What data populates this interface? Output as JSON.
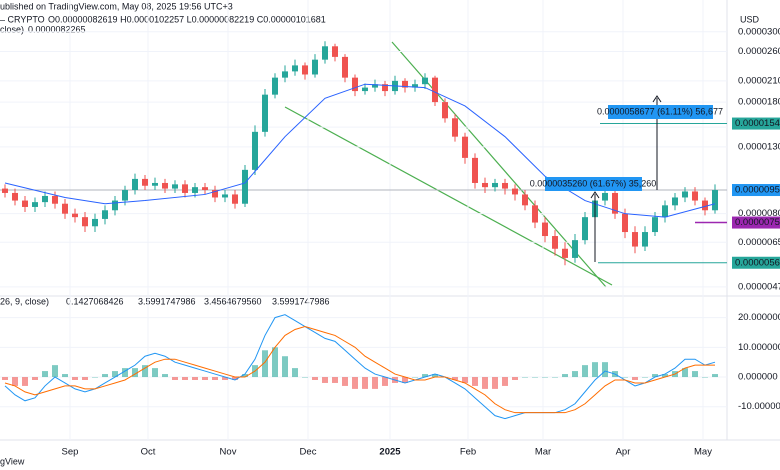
{
  "header": {
    "published": "ublished on TradingView.com, May 08, 2025 19:56 UTC+3",
    "symbol": "– CRYPTO",
    "ohlc": "O0.00000082619 H0.0000102257 L0.00000082219 C0.00000101681",
    "ma_label": "close)",
    "ma_value": "0.0000082265",
    "currency": "USD",
    "footer": "gView"
  },
  "chart_data": [
    {
      "type": "candlestick",
      "log": true,
      "up_color": "#26a69a",
      "down_color": "#ef5350",
      "xlim": [
        -0.5,
        72
      ],
      "ylim": [
        4.43e-06,
        3.78e-05
      ],
      "open": [
        9.6e-06,
        9.3e-06,
        8.8e-06,
        8.4e-06,
        8.7e-06,
        9.1e-06,
        8.6e-06,
        8e-06,
        7.8e-06,
        7.3e-06,
        7.7e-06,
        8.2e-06,
        8.8e-06,
        9.5e-06,
        1.03e-05,
        9.8e-06,
        1e-05,
        9.6e-06,
        9.9e-06,
        9.3e-06,
        9.7e-06,
        9.5e-06,
        9e-06,
        9.2e-06,
        8.6e-06,
        1.1e-05,
        1.45e-05,
        1.9e-05,
        2.15e-05,
        2.25e-05,
        2.35e-05,
        2.2e-05,
        2.45e-05,
        2.7e-05,
        2.5e-05,
        2.15e-05,
        1.95e-05,
        2e-05,
        2.05e-05,
        1.95e-05,
        2.1e-05,
        2e-05,
        2.05e-05,
        2.15e-05,
        1.8e-05,
        1.6e-05,
        1.4e-05,
        1.2e-05,
        1e-05,
        9.7e-06,
        1e-05,
        9.6e-06,
        9.2e-06,
        8.5e-06,
        7.5e-06,
        6.8e-06,
        6.2e-06,
        5.8e-06,
        6.6e-06,
        7.8e-06,
        8.8e-06,
        9.3e-06,
        8e-06,
        7e-06,
        6.3e-06,
        7e-06,
        7.8e-06,
        8.5e-06,
        9e-06,
        9.4e-06,
        8.8e-06,
        8.2e-06
      ],
      "high": [
        9.9e-06,
        9.6e-06,
        9.1e-06,
        9e-06,
        9.4e-06,
        9.4e-06,
        8.9e-06,
        8.3e-06,
        8.1e-06,
        8e-06,
        8.5e-06,
        9.1e-06,
        9.8e-06,
        1.07e-05,
        1.06e-05,
        1.04e-05,
        1.03e-05,
        1.02e-05,
        1.02e-05,
        1e-05,
        1e-05,
        9.8e-06,
        9.5e-06,
        9.5e-06,
        1.14e-05,
        1.52e-05,
        1.98e-05,
        2.22e-05,
        2.35e-05,
        2.45e-05,
        2.4e-05,
        2.55e-05,
        2.8e-05,
        2.75e-05,
        2.55e-05,
        2.2e-05,
        2.06e-05,
        2.12e-05,
        2.1e-05,
        2.18e-05,
        2.14e-05,
        2.12e-05,
        2.22e-05,
        2.18e-05,
        1.85e-05,
        1.65e-05,
        1.44e-05,
        1.24e-05,
        1.04e-05,
        1.03e-05,
        1.03e-05,
        9.9e-06,
        9.5e-06,
        8.8e-06,
        7.8e-06,
        7.1e-06,
        6.5e-06,
        6.9e-06,
        8.1e-06,
        9.1e-06,
        9.6e-06,
        9.7e-06,
        8.3e-06,
        7.3e-06,
        7.3e-06,
        8.1e-06,
        8.8e-06,
        9.3e-06,
        9.7e-06,
        9.7e-06,
        9e-06,
        9.9e-06
      ],
      "low": [
        9e-06,
        8.5e-06,
        8.1e-06,
        8.1e-06,
        8.4e-06,
        8.3e-06,
        7.7e-06,
        7.5e-06,
        7e-06,
        7e-06,
        7.4e-06,
        7.9e-06,
        8.5e-06,
        9.2e-06,
        9.5e-06,
        9.5e-06,
        9.3e-06,
        9.3e-06,
        9e-06,
        9e-06,
        9.2e-06,
        8.7e-06,
        8.7e-06,
        8.3e-06,
        8.4e-06,
        1.06e-05,
        1.4e-05,
        1.85e-05,
        2.08e-05,
        2.18e-05,
        2.12e-05,
        2.15e-05,
        2.38e-05,
        2.42e-05,
        2.08e-05,
        1.88e-05,
        1.9e-05,
        1.94e-05,
        1.88e-05,
        1.9e-05,
        1.93e-05,
        1.94e-05,
        1.98e-05,
        1.75e-05,
        1.55e-05,
        1.35e-05,
        1.15e-05,
        9.6e-06,
        9.3e-06,
        9.4e-06,
        9.2e-06,
        8.8e-06,
        8.2e-06,
        7.2e-06,
        6.5e-06,
        5.9e-06,
        5.5e-06,
        5.6e-06,
        6.4e-06,
        7.5e-06,
        8.5e-06,
        7.7e-06,
        6.7e-06,
        6e-06,
        6.1e-06,
        6.8e-06,
        7.5e-06,
        8.2e-06,
        8.7e-06,
        8.5e-06,
        7.9e-06,
        8e-06
      ],
      "close": [
        9.3e-06,
        8.8e-06,
        8.4e-06,
        8.7e-06,
        9.1e-06,
        8.6e-06,
        8e-06,
        7.8e-06,
        7.3e-06,
        7.7e-06,
        8.2e-06,
        8.8e-06,
        9.5e-06,
        1.03e-05,
        9.8e-06,
        1e-05,
        9.6e-06,
        9.9e-06,
        9.3e-06,
        9.7e-06,
        9.5e-06,
        9e-06,
        9.2e-06,
        8.6e-06,
        1.1e-05,
        1.45e-05,
        1.9e-05,
        2.15e-05,
        2.25e-05,
        2.35e-05,
        2.2e-05,
        2.45e-05,
        2.7e-05,
        2.5e-05,
        2.15e-05,
        1.95e-05,
        2e-05,
        2.05e-05,
        1.95e-05,
        2.1e-05,
        2e-05,
        2.05e-05,
        2.15e-05,
        1.8e-05,
        1.6e-05,
        1.4e-05,
        1.2e-05,
        1e-05,
        9.7e-06,
        1e-05,
        9.6e-06,
        9.2e-06,
        8.5e-06,
        7.5e-06,
        6.8e-06,
        6.2e-06,
        5.8e-06,
        6.6e-06,
        7.8e-06,
        8.8e-06,
        9.3e-06,
        8e-06,
        7e-06,
        6.3e-06,
        7e-06,
        7.8e-06,
        8.5e-06,
        9e-06,
        9.4e-06,
        8.8e-06,
        8.2e-06,
        9.5e-06
      ],
      "ma": {
        "color": "#2962ff",
        "x": [
          0,
          6,
          10,
          14,
          20,
          24,
          28,
          32,
          36,
          42,
          46,
          50,
          54,
          58,
          62,
          66,
          71
        ],
        "values": [
          1e-05,
          9e-06,
          8.6e-06,
          8.8e-06,
          9.2e-06,
          1e-05,
          1.4e-05,
          1.85e-05,
          2.05e-05,
          2e-05,
          1.75e-05,
          1.4e-05,
          1.05e-05,
          8.8e-06,
          8e-06,
          7.8e-06,
          8.6e-06
        ]
      },
      "yticks": [
        {
          "value": 3e-05,
          "label": "0.0000300"
        },
        {
          "value": 2.6e-05,
          "label": "0.0000260"
        },
        {
          "value": 2.1e-05,
          "label": "0.0000210"
        },
        {
          "value": 1.8e-05,
          "label": "0.0000180"
        },
        {
          "value": 1.5e-05,
          "label": "0.0000150"
        },
        {
          "value": 1.3e-05,
          "label": "0.0000130"
        },
        {
          "value": 8e-06,
          "label": "0.0000080"
        },
        {
          "value": 6.5e-06,
          "label": "0.0000065"
        },
        {
          "value": 4.7e-06,
          "label": "0.0000047"
        }
      ],
      "levels": [
        {
          "value": 1.54e-05,
          "label": "0.0000154",
          "color": "#26a69a"
        },
        {
          "value": 9.5e-06,
          "label": "0.0000095",
          "color": "#2196f3"
        },
        {
          "value": 7.5e-06,
          "label": "0.0000075",
          "color": "#9c27b0"
        },
        {
          "value": 5.6e-06,
          "label": "0.0000056",
          "color": "#26a69a"
        }
      ],
      "annotations": [
        "0.0000058677 (61.11%) 56,677",
        "0.0000035260 (61.67%) 35,260"
      ],
      "xticks": [
        {
          "value": 6.5,
          "label": "Sep"
        },
        {
          "value": 14.3,
          "label": "Oct"
        },
        {
          "value": 22.3,
          "label": "Nov"
        },
        {
          "value": 30.3,
          "label": "Dec"
        },
        {
          "value": 38.5,
          "label": "2025"
        },
        {
          "value": 46.3,
          "label": "Feb"
        },
        {
          "value": 53.8,
          "label": "Mar"
        },
        {
          "value": 61.8,
          "label": "Apr"
        },
        {
          "value": 69.8,
          "label": "May"
        }
      ]
    },
    {
      "type": "macd",
      "title": "26, 9, close)",
      "readouts": [
        "0.1427068426",
        "3.5991747986",
        "3.4564679560",
        "3.5991747986"
      ],
      "ylim": [
        -21.2,
        26.6
      ],
      "xlim": [
        -0.5,
        72
      ],
      "yticks": [
        {
          "value": 20,
          "label": "20.000000"
        },
        {
          "value": 10,
          "label": "10.000000"
        },
        {
          "value": 0,
          "label": "0.000000"
        },
        {
          "value": -10,
          "label": "-10.000000"
        }
      ],
      "series": [
        {
          "name": "MACD",
          "color": "#2196f3",
          "values": [
            -3,
            -6,
            -8,
            -7,
            -3,
            0,
            -2,
            -4,
            -5,
            -4,
            -2,
            0,
            2,
            4,
            7,
            8,
            7,
            5,
            4,
            3,
            2,
            1,
            0,
            -1,
            1,
            6,
            14,
            20,
            21,
            19,
            17,
            15,
            13,
            12,
            9,
            6,
            3,
            1,
            0,
            -1,
            -2,
            -1,
            0,
            1,
            0,
            -2,
            -4,
            -7,
            -10,
            -13,
            -14,
            -13,
            -12,
            -12,
            -12,
            -12,
            -11,
            -9,
            -5,
            -1,
            2,
            1,
            -1,
            -3,
            -2,
            0,
            1,
            3,
            6,
            6,
            4,
            5
          ]
        },
        {
          "name": "Signal",
          "color": "#ff6d00",
          "values": [
            -2,
            -3,
            -5,
            -6,
            -5,
            -4,
            -3,
            -3,
            -4,
            -4,
            -3,
            -2,
            -1,
            1,
            3,
            5,
            6,
            6,
            5,
            4,
            3,
            2,
            1,
            0,
            0,
            2,
            5,
            10,
            14,
            16,
            17,
            16,
            15,
            14,
            12,
            10,
            7,
            5,
            3,
            1,
            0,
            -1,
            -1,
            0,
            0,
            -1,
            -2,
            -4,
            -6,
            -9,
            -11,
            -12,
            -12,
            -12,
            -12,
            -12,
            -12,
            -11,
            -9,
            -6,
            -3,
            -1,
            -1,
            -2,
            -2,
            -1,
            0,
            1,
            3,
            4,
            4,
            4
          ]
        }
      ],
      "histogram": {
        "up_color": "#26a69a",
        "down_color": "#ef5350",
        "values": [
          -1,
          -3,
          -3,
          -1,
          2,
          4,
          1,
          -1,
          -1,
          0,
          1,
          2,
          3,
          3,
          4,
          3,
          1,
          -1,
          -1,
          -1,
          -1,
          -1,
          -1,
          -1,
          1,
          4,
          9,
          10,
          7,
          3,
          0,
          -1,
          -2,
          -2,
          -3,
          -4,
          -4,
          -4,
          -3,
          -2,
          -2,
          0,
          1,
          1,
          0,
          -1,
          -2,
          -3,
          -4,
          -4,
          -3,
          -1,
          0,
          0,
          0,
          0,
          1,
          2,
          4,
          5,
          5,
          2,
          0,
          -1,
          0,
          1,
          1,
          2,
          3,
          2,
          0,
          1
        ]
      }
    }
  ]
}
